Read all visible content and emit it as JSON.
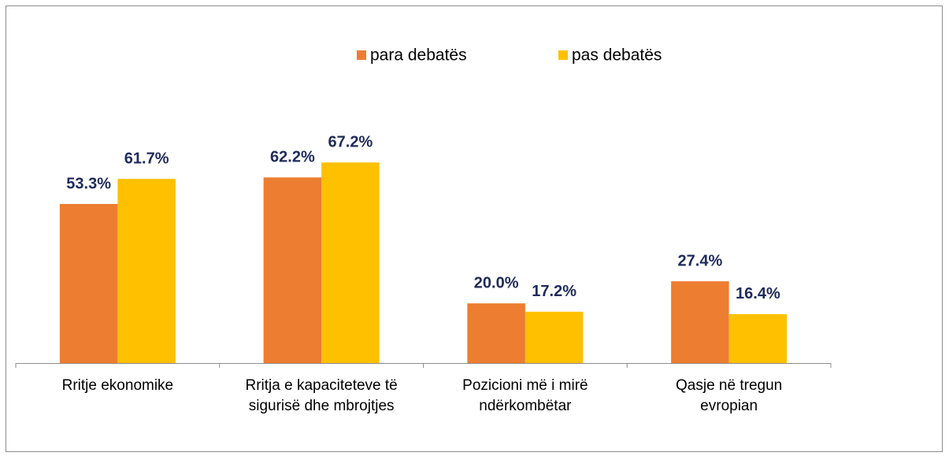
{
  "chart_data": {
    "type": "bar",
    "categories": [
      [
        "Rritje ekonomike"
      ],
      [
        "Rritja e kapaciteteve të",
        "sigurisë dhe mbrojtjes"
      ],
      [
        "Pozicioni më i mirë",
        "ndërkombëtar"
      ],
      [
        "Qasje në tregun",
        "evropian"
      ]
    ],
    "series": [
      {
        "name": "para debatës",
        "color": "#ed7d31",
        "values": [
          53.3,
          62.2,
          20.0,
          27.4
        ],
        "value_labels": [
          "53.3%",
          "62.2%",
          "20.0%",
          "27.4%"
        ]
      },
      {
        "name": "pas debatës",
        "color": "#ffc000",
        "values": [
          61.7,
          67.2,
          17.2,
          16.4
        ],
        "value_labels": [
          "61.7%",
          "67.2%",
          "17.2%",
          "16.4%"
        ]
      }
    ],
    "legend": "top"
  }
}
